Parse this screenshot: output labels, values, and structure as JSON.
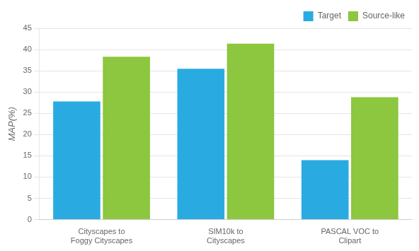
{
  "chart_data": {
    "type": "bar",
    "categories": [
      "Cityscapes to\nFoggy Cityscapes",
      "SIM10k to\nCityscapes",
      "PASCAL VOC to\nClipart"
    ],
    "series": [
      {
        "name": "Target",
        "color": "#29ABE2",
        "values": [
          27.8,
          35.5,
          14.0
        ]
      },
      {
        "name": "Source-like",
        "color": "#8DC63F",
        "values": [
          38.3,
          41.4,
          28.8
        ]
      }
    ],
    "ylabel": "MAP(%)",
    "ylim": [
      0,
      45
    ],
    "yticks": [
      0,
      5,
      10,
      15,
      20,
      25,
      30,
      35,
      40,
      45
    ],
    "grid": true,
    "legend": "upper right"
  }
}
